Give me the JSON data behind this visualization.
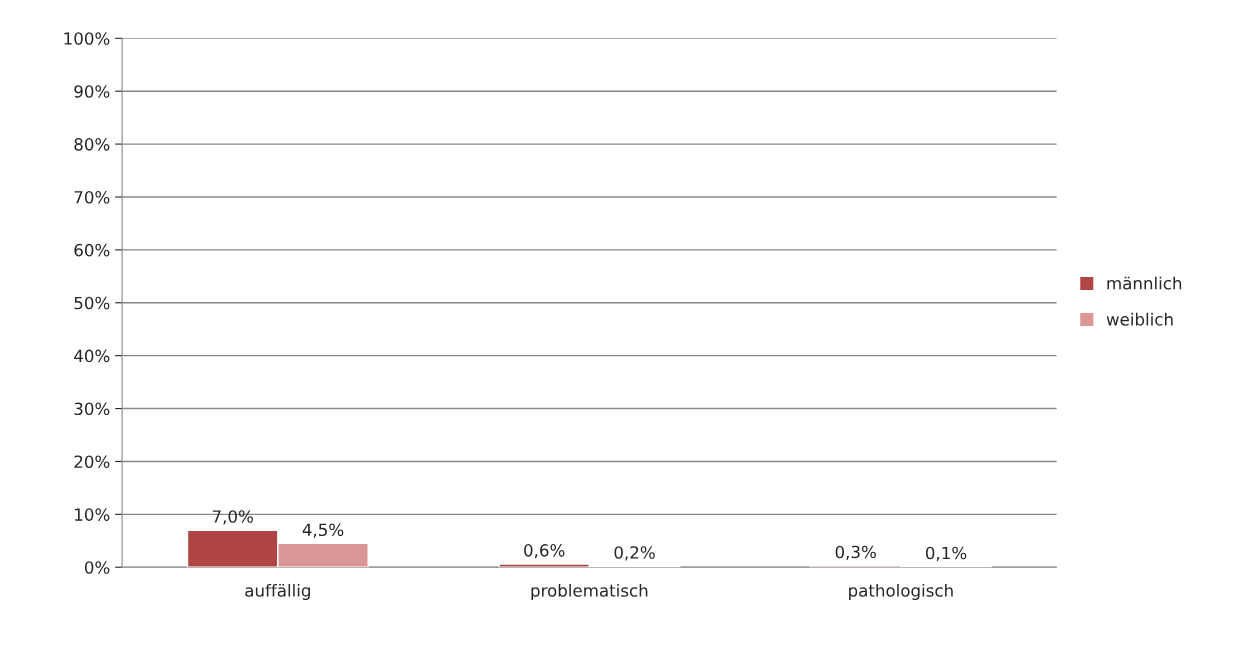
{
  "chart_data": {
    "type": "bar",
    "categories": [
      "auffällig",
      "problematisch",
      "pathologisch"
    ],
    "series": [
      {
        "name": "männlich",
        "color": "#b04644",
        "values": [
          7.0,
          0.6,
          0.3
        ],
        "value_labels": [
          "7,0%",
          "0,6%",
          "0,3%"
        ]
      },
      {
        "name": "weiblich",
        "color": "#d99694",
        "values": [
          4.5,
          0.2,
          0.1
        ],
        "value_labels": [
          "4,5%",
          "0,2%",
          "0,1%"
        ]
      }
    ],
    "ylim": [
      0,
      100
    ],
    "yticks": [
      {
        "value": 0,
        "label": "0%"
      },
      {
        "value": 10,
        "label": "10%"
      },
      {
        "value": 20,
        "label": "20%"
      },
      {
        "value": 30,
        "label": "30%"
      },
      {
        "value": 40,
        "label": "40%"
      },
      {
        "value": 50,
        "label": "50%"
      },
      {
        "value": 60,
        "label": "60%"
      },
      {
        "value": 70,
        "label": "70%"
      },
      {
        "value": 80,
        "label": "80%"
      },
      {
        "value": 90,
        "label": "90%"
      },
      {
        "value": 100,
        "label": "100%"
      }
    ],
    "grid": "y",
    "legend": "right"
  }
}
